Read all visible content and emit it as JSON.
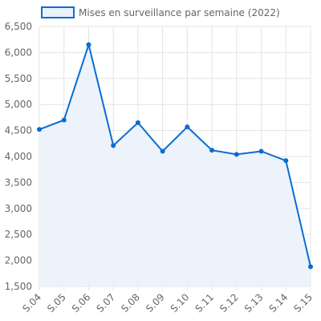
{
  "chart_data": {
    "type": "area",
    "categories": [
      "S.04",
      "S.05",
      "S.06",
      "S.07",
      "S.08",
      "S.09",
      "S.10",
      "S.11",
      "S.12",
      "S.13",
      "S.14",
      "S.15"
    ],
    "series": [
      {
        "name": "Mises en surveillance par semaine (2022)",
        "values": [
          4520,
          4700,
          6150,
          4210,
          4650,
          4100,
          4570,
          4120,
          4040,
          4100,
          3920,
          1880
        ]
      }
    ],
    "y_ticks": [
      "1,500",
      "2,000",
      "2,500",
      "3,000",
      "3,500",
      "4,000",
      "4,500",
      "5,000",
      "5,500",
      "6,000",
      "6,500"
    ],
    "ylim": [
      1500,
      6500
    ],
    "grid": true,
    "legend_position": "top-center",
    "colors": {
      "line": "#0b6cd1",
      "fill": "#eaf2fb",
      "grid": "#e3e3e3",
      "text": "#666666"
    }
  }
}
